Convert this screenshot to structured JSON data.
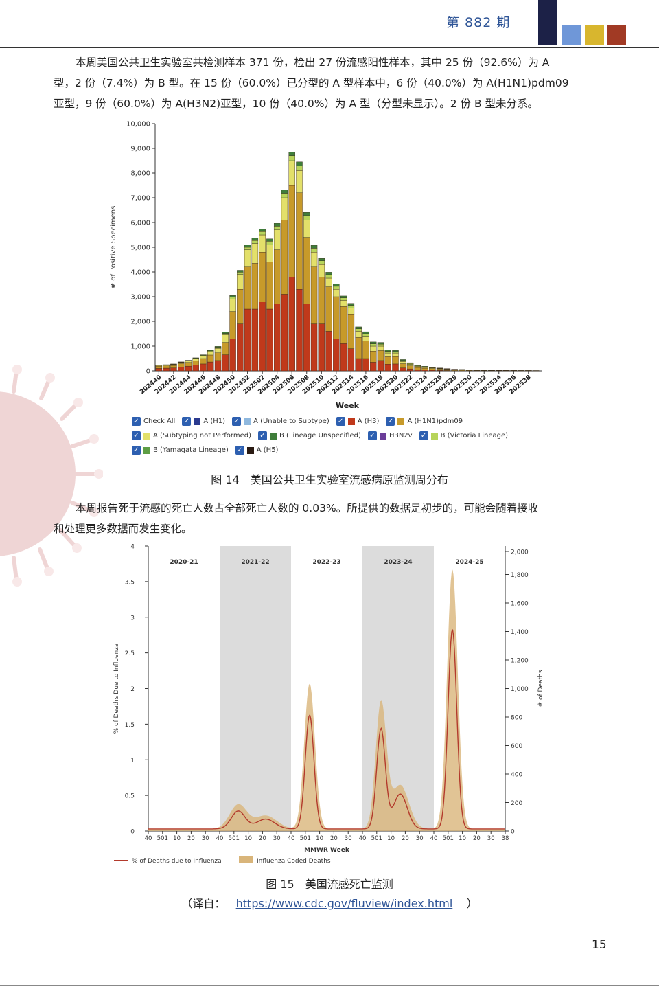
{
  "header": {
    "issue": "第 882 期",
    "colors": [
      "#1c2147",
      "#6f97d8",
      "#d8b62e",
      "#a13a24"
    ]
  },
  "para1": {
    "line1": "本周美国公共卫生实验室共检测样本 371 份，检出 27 份流感阳性样本，其中 25 份（92.6%）为 A",
    "line2": "型，2 份（7.4%）为 B 型。在 15 份（60.0%）已分型的 A 型样本中，6 份（40.0%）为 A(H1N1)pdm09",
    "line3": "亚型，9 份（60.0%）为 A(H3N2)亚型，10 份（40.0%）为 A 型（分型未显示）。2 份 B 型未分系。"
  },
  "fig14": {
    "caption": "图 14　美国公共卫生实验室流感病原监测周分布",
    "legend": [
      {
        "label": "Check All",
        "color": ""
      },
      {
        "label": "A (H1)",
        "color": "#2b3a8f"
      },
      {
        "label": "A (Unable to Subtype)",
        "color": "#8fb8de"
      },
      {
        "label": "A (H3)",
        "color": "#c0391b"
      },
      {
        "label": "A (H1N1)pdm09",
        "color": "#c79a2a"
      },
      {
        "label": "A (Subtyping not Performed)",
        "color": "#e3e06a"
      },
      {
        "label": "B (Lineage Unspecified)",
        "color": "#3f7d3a"
      },
      {
        "label": "H3N2v",
        "color": "#6b3d99"
      },
      {
        "label": "B (Victoria Lineage)",
        "color": "#b7d45a"
      },
      {
        "label": "B (Yamagata Lineage)",
        "color": "#5e9e45"
      },
      {
        "label": "A (H5)",
        "color": "#2a1a12"
      }
    ]
  },
  "para2": {
    "line1": "本周报告死于流感的死亡人数占全部死亡人数的 0.03%。所提供的数据是初步的，可能会随着接收",
    "line2": "和处理更多数据而发生变化。"
  },
  "fig15": {
    "caption": "图 15　美国流感死亡监测",
    "source_prefix": "（译自：",
    "source_url": "https://www.cdc.gov/fluview/index.html",
    "source_suffix": "）"
  },
  "page_number": "15",
  "chart_data": [
    {
      "type": "bar",
      "stacked": true,
      "xlabel": "Week",
      "ylabel": "# of Positive Specimens",
      "ylim": [
        0,
        10000
      ],
      "yticks": [
        "0",
        "1,000",
        "2,000",
        "3,000",
        "4,000",
        "5,000",
        "6,000",
        "7,000",
        "8,000",
        "9,000",
        "10,000"
      ],
      "tick_labels": [
        "202440",
        "202442",
        "202444",
        "202446",
        "202448",
        "202450",
        "202452",
        "202502",
        "202504",
        "202506",
        "202508",
        "202510",
        "202512",
        "202514",
        "202516",
        "202518",
        "202520",
        "202522",
        "202524",
        "202526",
        "202528",
        "202530",
        "202532",
        "202534",
        "202536",
        "202538"
      ],
      "weeks": 52,
      "series": [
        {
          "name": "A (H3)",
          "color": "#c0391b",
          "values": [
            100,
            110,
            120,
            160,
            190,
            230,
            280,
            360,
            420,
            650,
            1300,
            1900,
            2500,
            2500,
            2800,
            2500,
            2700,
            3100,
            3800,
            3300,
            2700,
            1900,
            1900,
            1600,
            1300,
            1100,
            900,
            500,
            500,
            350,
            420,
            270,
            280,
            120,
            80,
            50,
            40,
            30,
            20,
            15,
            10,
            10,
            8,
            6,
            5,
            5,
            4,
            4,
            3,
            3,
            3,
            2
          ]
        },
        {
          "name": "A (H1N1)pdm09",
          "color": "#c79a2a",
          "values": [
            90,
            90,
            100,
            130,
            150,
            180,
            220,
            280,
            310,
            500,
            1100,
            1400,
            1700,
            1850,
            2000,
            1900,
            2200,
            3000,
            3700,
            3900,
            2700,
            2300,
            1900,
            1800,
            1700,
            1500,
            1400,
            850,
            700,
            450,
            400,
            300,
            300,
            170,
            120,
            90,
            70,
            60,
            50,
            40,
            30,
            25,
            20,
            15,
            12,
            10,
            10,
            8,
            8,
            6,
            6,
            5
          ]
        },
        {
          "name": "A (Subtyping not Performed)",
          "color": "#e3e06a",
          "values": [
            30,
            30,
            40,
            50,
            60,
            80,
            100,
            140,
            180,
            300,
            500,
            600,
            700,
            800,
            700,
            700,
            800,
            900,
            1000,
            900,
            700,
            600,
            500,
            350,
            300,
            250,
            250,
            250,
            200,
            200,
            180,
            150,
            140,
            80,
            60,
            40,
            30,
            25,
            20,
            15,
            10,
            10,
            8,
            6,
            5,
            5,
            4,
            4,
            3,
            3,
            3,
            2
          ]
        },
        {
          "name": "B (Victoria Lineage)",
          "color": "#b7d45a",
          "values": [
            10,
            10,
            10,
            12,
            15,
            20,
            25,
            30,
            40,
            60,
            80,
            90,
            100,
            120,
            130,
            140,
            150,
            180,
            200,
            200,
            180,
            160,
            150,
            140,
            120,
            100,
            100,
            100,
            100,
            90,
            80,
            70,
            60,
            50,
            40,
            30,
            25,
            20,
            15,
            12,
            10,
            8,
            6,
            5,
            4,
            4,
            3,
            3,
            2,
            2,
            2,
            2
          ]
        },
        {
          "name": "B (Lineage Unspecified)",
          "color": "#3f7d3a",
          "values": [
            10,
            10,
            10,
            12,
            15,
            20,
            25,
            30,
            40,
            50,
            70,
            80,
            90,
            100,
            100,
            100,
            120,
            140,
            150,
            150,
            130,
            120,
            100,
            100,
            90,
            80,
            80,
            80,
            80,
            80,
            70,
            60,
            50,
            40,
            30,
            25,
            20,
            15,
            12,
            10,
            8,
            6,
            5,
            4,
            3,
            3,
            3,
            2,
            2,
            2,
            2,
            2
          ]
        }
      ]
    },
    {
      "type": "line",
      "xlabel": "MMWR Week",
      "ylabel": "% of Deaths Due to Influenza",
      "y2label": "# of Deaths",
      "ylim": [
        0,
        4
      ],
      "y2lim": [
        0,
        2000
      ],
      "yticks": [
        "0",
        "0.5",
        "1",
        "1.5",
        "2",
        "2.5",
        "3",
        "3.5",
        "4"
      ],
      "y2ticks": [
        "0",
        "200",
        "400",
        "600",
        "800",
        "1,000",
        "1,200",
        "1,400",
        "1,600",
        "1,800",
        "2,000"
      ],
      "tick_labels": [
        "40",
        "501",
        "10",
        "20",
        "30",
        "40",
        "501",
        "10",
        "20",
        "30",
        "40",
        "501",
        "10",
        "20",
        "30",
        "40",
        "501",
        "10",
        "20",
        "30",
        "40",
        "501",
        "10",
        "20",
        "30",
        "38"
      ],
      "seasons": [
        {
          "label": "2020-21",
          "shaded": false
        },
        {
          "label": "2021-22",
          "shaded": true
        },
        {
          "label": "2022-23",
          "shaded": false
        },
        {
          "label": "2023-24",
          "shaded": true
        },
        {
          "label": "2024-25",
          "shaded": false
        }
      ],
      "legend": [
        {
          "label": "% of Deaths due to Influenza",
          "color": "#b33a2c"
        },
        {
          "label": "Influenza Coded Deaths",
          "color": "#d9b57a"
        }
      ],
      "series": [
        {
          "name": "% of Deaths due to Influenza",
          "peaks": [
            {
              "season": "2021-22",
              "value": 0.25
            },
            {
              "season": "2022-23",
              "value": 1.6
            },
            {
              "season": "2023-24",
              "value": 1.4
            },
            {
              "season": "2024-25",
              "value": 2.8
            }
          ]
        },
        {
          "name": "Influenza Coded Deaths",
          "peaks": [
            {
              "season": "2021-22",
              "value": 170
            },
            {
              "season": "2022-23",
              "value": 1020
            },
            {
              "season": "2023-24",
              "value": 880
            },
            {
              "season": "2024-25",
              "value": 1820
            }
          ]
        }
      ]
    }
  ]
}
